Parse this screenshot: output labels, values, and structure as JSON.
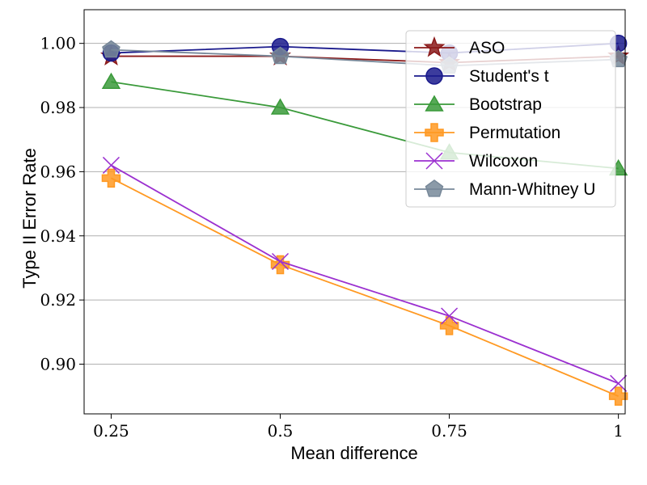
{
  "chart_data": {
    "type": "line",
    "title": "",
    "xlabel": "Mean difference",
    "ylabel": "Type II Error Rate",
    "categories": [
      "0.25",
      "0.5",
      "0.75",
      "1"
    ],
    "x": [
      0.25,
      0.5,
      0.75,
      1.0
    ],
    "xlim": [
      0.21,
      1.01
    ],
    "ylim": [
      0.8845,
      1.0105
    ],
    "yticks": [
      0.9,
      0.92,
      0.94,
      0.96,
      0.98,
      1.0
    ],
    "ytick_labels": [
      "0.90",
      "0.92",
      "0.94",
      "0.96",
      "0.98",
      "1.00"
    ],
    "grid": "horizontal",
    "legend_position": "top-right",
    "series": [
      {
        "name": "ASO",
        "marker": "star",
        "color": "#8b1a1a",
        "values": [
          0.996,
          0.996,
          0.994,
          0.996
        ]
      },
      {
        "name": "Student's t",
        "marker": "circle",
        "color": "#1a1a8c",
        "values": [
          0.997,
          0.999,
          0.997,
          1.0
        ]
      },
      {
        "name": "Bootstrap",
        "marker": "triangle",
        "color": "#3a9a3a",
        "values": [
          0.988,
          0.98,
          0.966,
          0.961
        ]
      },
      {
        "name": "Permutation",
        "marker": "plus",
        "color": "#ff9922",
        "values": [
          0.958,
          0.931,
          0.912,
          0.89
        ]
      },
      {
        "name": "Wilcoxon",
        "marker": "x",
        "color": "#9b30d0",
        "values": [
          0.962,
          0.932,
          0.915,
          0.894
        ]
      },
      {
        "name": "Mann-Whitney U",
        "marker": "pentagon",
        "color": "#778899",
        "values": [
          0.998,
          0.996,
          0.993,
          0.995
        ]
      }
    ]
  }
}
